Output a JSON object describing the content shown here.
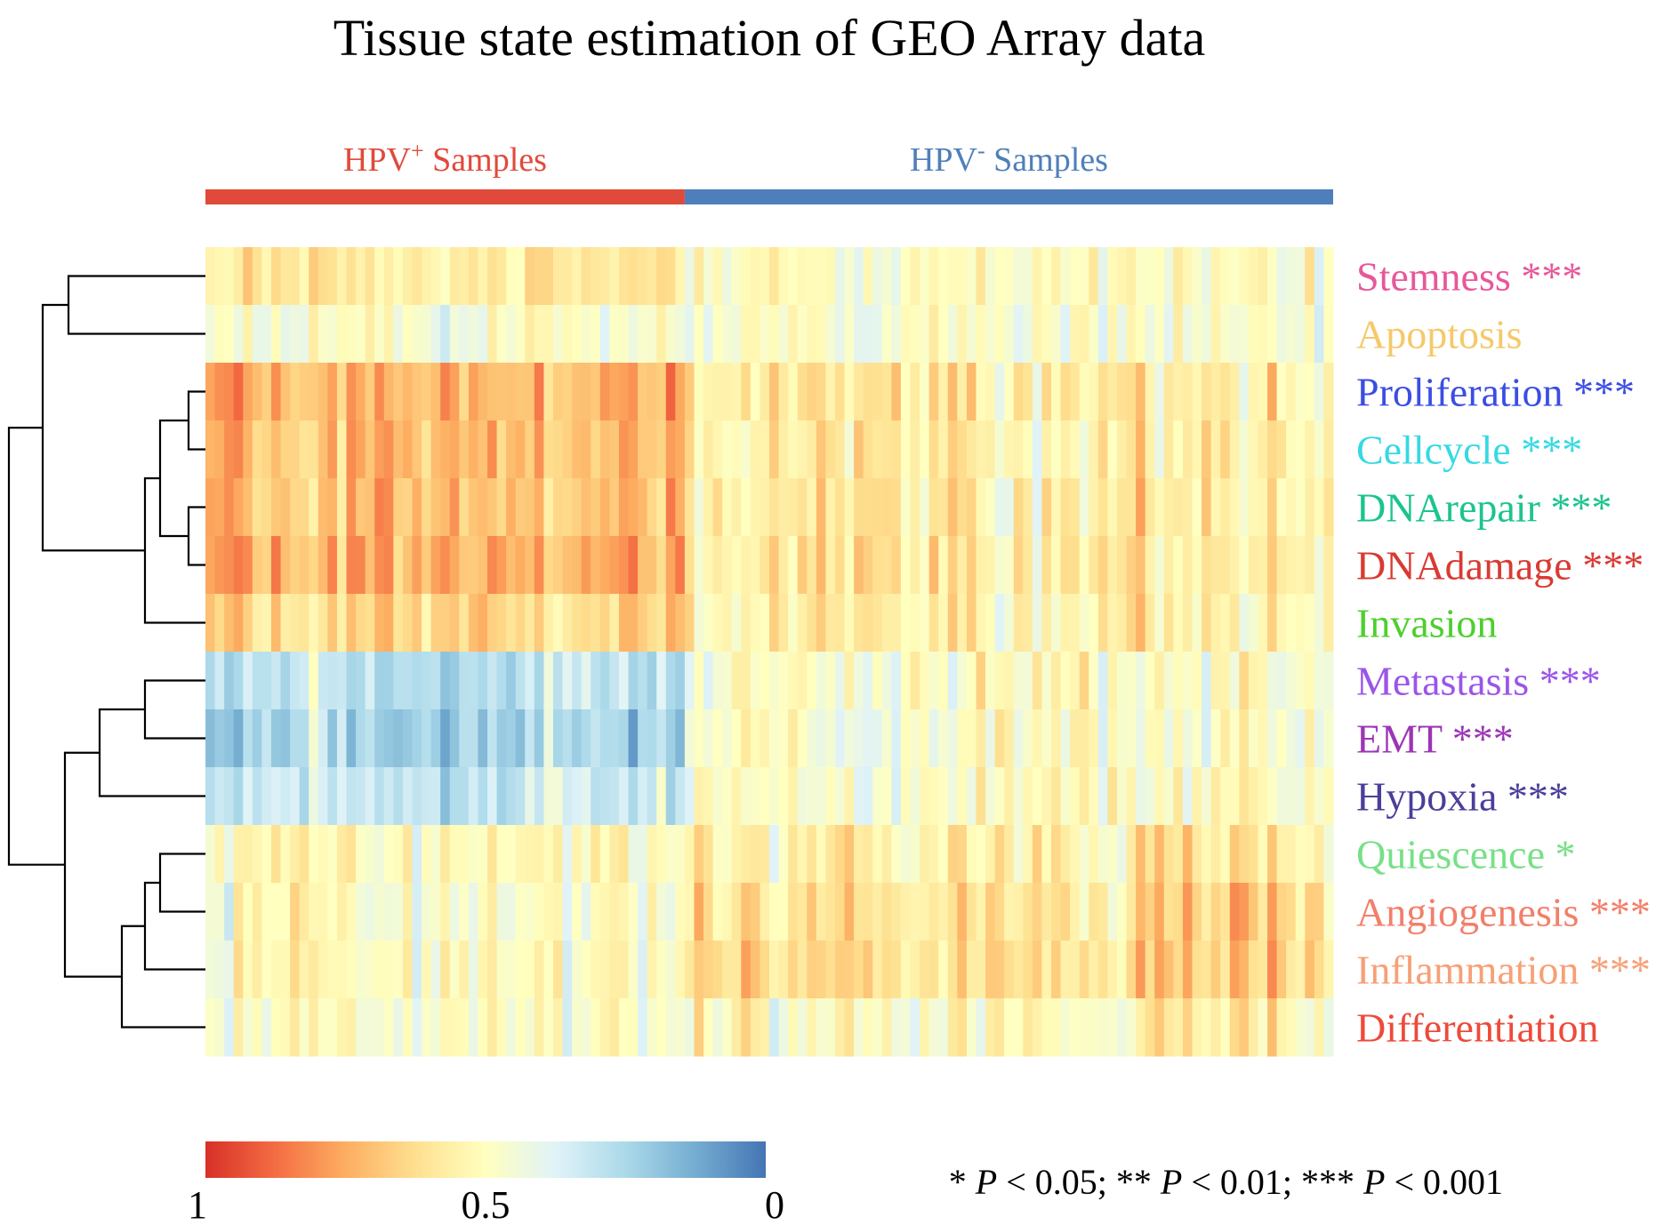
{
  "chart_data": {
    "type": "heatmap",
    "title": "Tissue state estimation of GEO Array data",
    "groups": [
      {
        "label_main": "HPV",
        "label_sup": "+",
        "label_rest": " Samples",
        "color": "#e04a3a",
        "start_fraction": 0.0,
        "end_fraction": 0.425
      },
      {
        "label_main": "HPV",
        "label_sup": "-",
        "label_rest": " Samples",
        "color": "#4f7fba",
        "start_fraction": 0.425,
        "end_fraction": 1.0
      }
    ],
    "rows": [
      {
        "name": "Stemness",
        "stars": "***",
        "color": "#e8579a"
      },
      {
        "name": "Apoptosis",
        "stars": "",
        "color": "#f5c96a"
      },
      {
        "name": "Proliferation",
        "stars": "***",
        "color": "#3b4de3"
      },
      {
        "name": "Cellcycle",
        "stars": "***",
        "color": "#36d9e3"
      },
      {
        "name": "DNArepair",
        "stars": "***",
        "color": "#1cc48f"
      },
      {
        "name": "DNAdamage",
        "stars": "***",
        "color": "#d93a32"
      },
      {
        "name": "Invasion",
        "stars": "",
        "color": "#4ecf2e"
      },
      {
        "name": "Metastasis",
        "stars": "***",
        "color": "#9b55e8"
      },
      {
        "name": "EMT",
        "stars": "***",
        "color": "#9c35b5"
      },
      {
        "name": "Hypoxia",
        "stars": "***",
        "color": "#4a3f9a"
      },
      {
        "name": "Quiescence",
        "stars": "*",
        "color": "#78e087"
      },
      {
        "name": "Angiogenesis",
        "stars": "***",
        "color": "#f27f6a"
      },
      {
        "name": "Inflammation",
        "stars": "***",
        "color": "#f7a076"
      },
      {
        "name": "Differentiation",
        "stars": "",
        "color": "#ee4a3a"
      }
    ],
    "n_samples": 120,
    "n_hpv_pos": 51,
    "row_mean_scores": [
      0.52,
      0.47,
      0.62,
      0.61,
      0.6,
      0.63,
      0.57,
      0.42,
      0.4,
      0.43,
      0.56,
      0.58,
      0.6,
      0.52
    ],
    "row_hpv_pos_shift": [
      0.06,
      0.0,
      0.12,
      0.11,
      0.1,
      0.12,
      0.07,
      -0.14,
      -0.17,
      -0.12,
      -0.03,
      -0.08,
      -0.08,
      -0.02
    ],
    "dendrogram": "((Stemness,Apoptosis),(((Proliferation,Cellcycle),(DNArepair,DNAdamage)),Invasion)),(((Metastasis,EMT),Hypoxia),(((Quiescence,Angiogenesis),Inflammation),Differentiation))",
    "colorbar": {
      "colors": [
        "#d73027",
        "#f46d43",
        "#fdae61",
        "#fee090",
        "#ffffbf",
        "#e0f3f8",
        "#abd9e9",
        "#74add1",
        "#4575b4"
      ],
      "tick_labels": [
        "1",
        "0.5",
        "0"
      ],
      "range": [
        1,
        0
      ]
    },
    "footnote": [
      {
        "t": "* ",
        "i": false
      },
      {
        "t": "P",
        "i": true
      },
      {
        "t": " < 0.05; ** ",
        "i": false
      },
      {
        "t": "P",
        "i": true
      },
      {
        "t": " < 0.01; *** ",
        "i": false
      },
      {
        "t": "P",
        "i": true
      },
      {
        "t": " < 0.001",
        "i": false
      }
    ]
  }
}
